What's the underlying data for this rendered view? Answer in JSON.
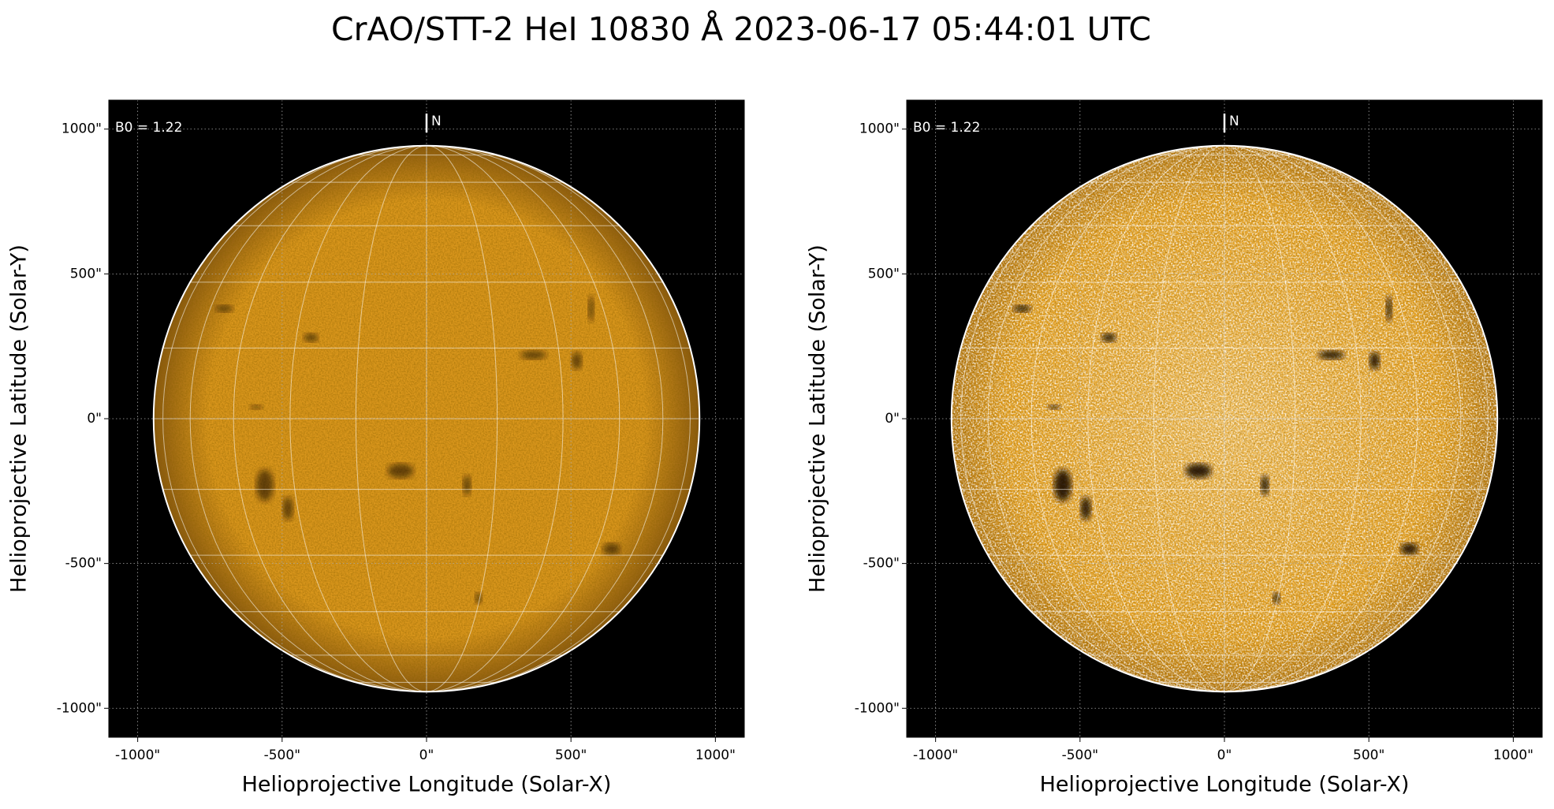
{
  "title": "CrAO/STT-2 HeI 10830 Å 2023-06-17 05:44:01 UTC",
  "chart_data": [
    {
      "type": "image",
      "xlabel": "Helioprojective Longitude (Solar-X)",
      "ylabel": "Helioprojective Latitude (Solar-Y)",
      "annotation": "B0 = 1.22",
      "north_label": "N",
      "color": "#d9961c",
      "solar_radius": 945,
      "grid": true,
      "xlim": [
        -1100,
        1100
      ],
      "ylim": [
        -1100,
        1100
      ],
      "xticks": [
        {
          "value": -1000,
          "label": "-1000\""
        },
        {
          "value": -500,
          "label": "-500\""
        },
        {
          "value": 0,
          "label": "0\""
        },
        {
          "value": 500,
          "label": "500\""
        },
        {
          "value": 1000,
          "label": "1000\""
        }
      ],
      "yticks": [
        {
          "value": -1000,
          "label": "-1000\""
        },
        {
          "value": -500,
          "label": "-500\""
        },
        {
          "value": 0,
          "label": "0\""
        },
        {
          "value": 500,
          "label": "500\""
        },
        {
          "value": 1000,
          "label": "1000\""
        }
      ]
    },
    {
      "type": "image",
      "xlabel": "Helioprojective Longitude (Solar-X)",
      "ylabel": "Helioprojective Latitude (Solar-Y)",
      "annotation": "B0 = 1.22",
      "north_label": "N",
      "color": "#eaa21e",
      "solar_radius": 945,
      "grid": true,
      "xlim": [
        -1100,
        1100
      ],
      "ylim": [
        -1100,
        1100
      ],
      "xticks": [
        {
          "value": -1000,
          "label": "-1000\""
        },
        {
          "value": -500,
          "label": "-500\""
        },
        {
          "value": 0,
          "label": "0\""
        },
        {
          "value": 500,
          "label": "500\""
        },
        {
          "value": 1000,
          "label": "1000\""
        }
      ],
      "yticks": [
        {
          "value": -1000,
          "label": "-1000\""
        },
        {
          "value": -500,
          "label": "-500\""
        },
        {
          "value": 0,
          "label": "0\""
        },
        {
          "value": 500,
          "label": "500\""
        },
        {
          "value": 1000,
          "label": "1000\""
        }
      ]
    }
  ]
}
